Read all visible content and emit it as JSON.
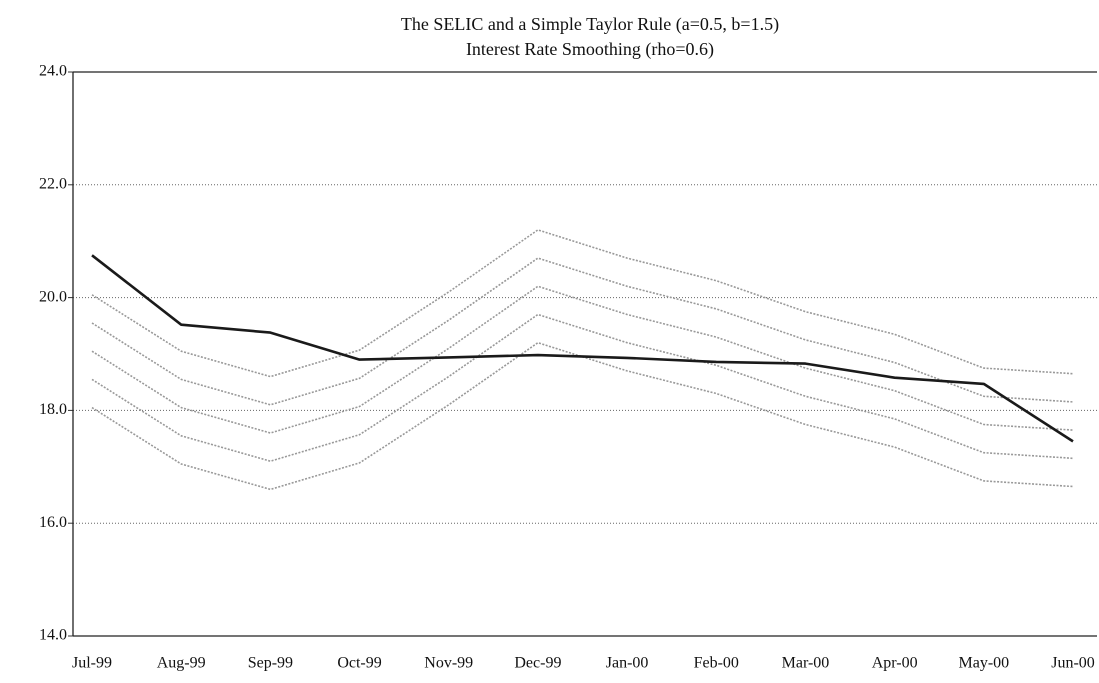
{
  "chart_data": {
    "type": "line",
    "title": "The SELIC and a Simple Taylor Rule (a=0.5, b=1.5)",
    "subtitle": "Interest Rate Smoothing (rho=0.6)",
    "categories": [
      "Jul-99",
      "Aug-99",
      "Sep-99",
      "Oct-99",
      "Nov-99",
      "Dec-99",
      "Jan-00",
      "Feb-00",
      "Mar-00",
      "Apr-00",
      "May-00",
      "Jun-00"
    ],
    "series": [
      {
        "color": "#999999",
        "dashed": true,
        "values": [
          20.05,
          19.05,
          18.6,
          19.07,
          20.1,
          21.2,
          20.7,
          20.3,
          19.75,
          19.35,
          18.75,
          18.65
        ]
      },
      {
        "color": "#999999",
        "dashed": true,
        "values": [
          19.55,
          18.55,
          18.1,
          18.57,
          19.6,
          20.7,
          20.2,
          19.8,
          19.25,
          18.85,
          18.25,
          18.15
        ]
      },
      {
        "color": "#999999",
        "dashed": true,
        "values": [
          19.05,
          18.05,
          17.6,
          18.07,
          19.1,
          20.2,
          19.7,
          19.3,
          18.75,
          18.35,
          17.75,
          17.65
        ]
      },
      {
        "color": "#999999",
        "dashed": true,
        "values": [
          18.55,
          17.55,
          17.1,
          17.57,
          18.6,
          19.7,
          19.2,
          18.8,
          18.25,
          17.85,
          17.25,
          17.15
        ]
      },
      {
        "color": "#999999",
        "dashed": true,
        "values": [
          18.05,
          17.05,
          16.6,
          17.07,
          18.1,
          19.2,
          18.7,
          18.3,
          17.75,
          17.35,
          16.75,
          16.65
        ]
      },
      {
        "color": "#1a1a1a",
        "dashed": false,
        "values": [
          20.75,
          19.52,
          19.38,
          18.9,
          18.94,
          18.98,
          18.93,
          18.86,
          18.83,
          18.58,
          18.47,
          17.45
        ]
      }
    ],
    "ylim": [
      14,
      24
    ],
    "yticks": [
      {
        "value": 14,
        "label": "14.0"
      },
      {
        "value": 16,
        "label": "16.0"
      },
      {
        "value": 18,
        "label": "18.0"
      },
      {
        "value": 20,
        "label": "20.0"
      },
      {
        "value": 22,
        "label": "22.0"
      },
      {
        "value": 24,
        "label": "24.0"
      }
    ],
    "grid": true
  }
}
